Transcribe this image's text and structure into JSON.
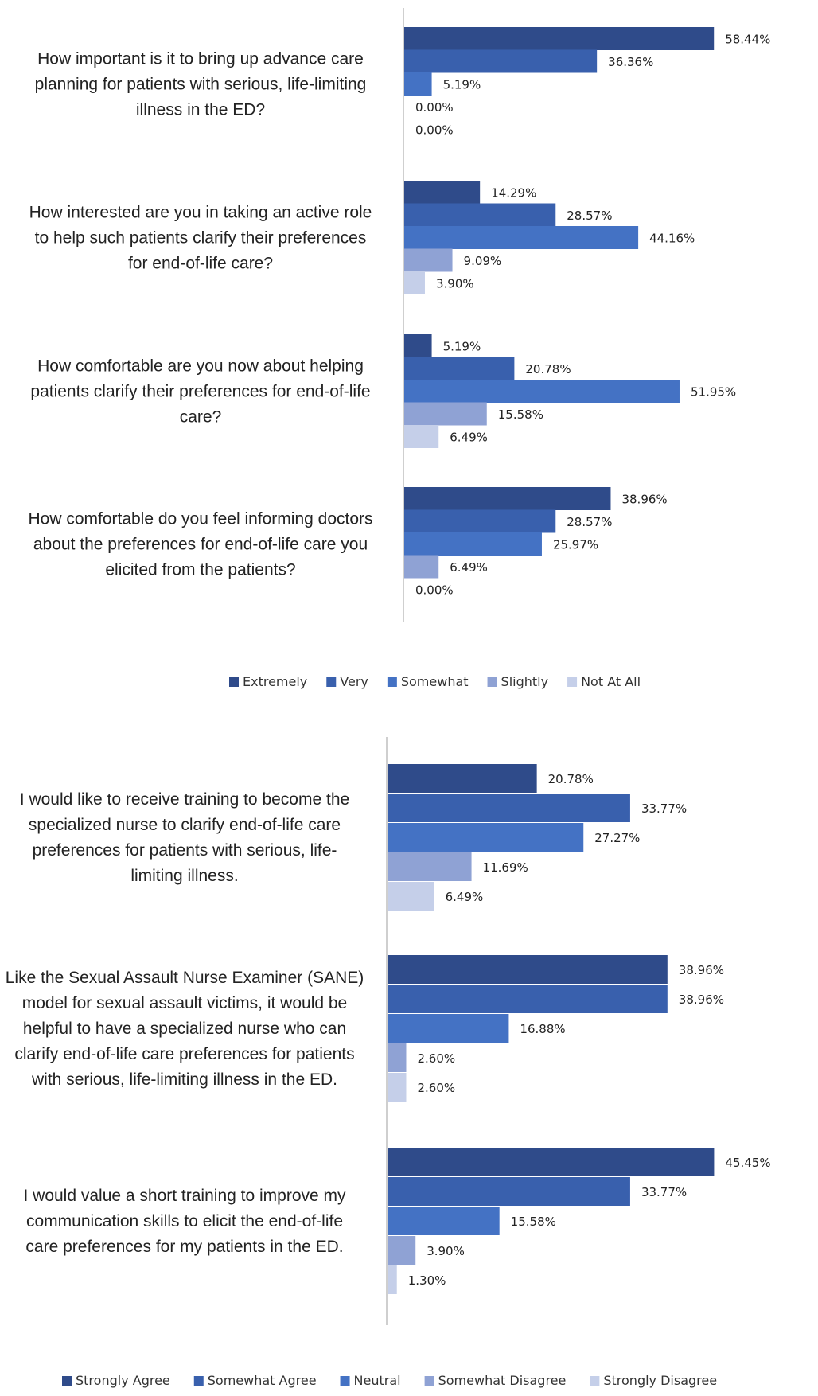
{
  "chart_data": [
    {
      "type": "bar",
      "orientation": "horizontal",
      "categories": [
        "How important is it to bring up advance care planning for patients with serious, life-limiting illness in the ED?",
        "How interested are you in taking an active role to help such patients clarify their preferences for end-of-life care?",
        "How comfortable are you now about helping patients clarify their preferences for end-of-life care?",
        "How comfortable do you feel informing doctors about the preferences for end-of-life care you elicited from the patients?"
      ],
      "category_lines": [
        [
          "How important is it to bring up advance care",
          "planning for patients with serious, life-limiting",
          "illness in the ED?"
        ],
        [
          "How interested are you in taking an active role",
          "to help such patients clarify their preferences",
          "for end-of-life care?"
        ],
        [
          "How comfortable are you now about helping",
          "patients clarify their preferences for end-of-life",
          "care?"
        ],
        [
          "How comfortable do you feel informing doctors",
          "about the preferences for end-of-life care you",
          "elicited from the patients?"
        ]
      ],
      "series": [
        {
          "name": "Extremely",
          "values": [
            58.44,
            14.29,
            5.19,
            38.96
          ],
          "labels": [
            "58.44%",
            "14.29%",
            "5.19%",
            "38.96%"
          ]
        },
        {
          "name": "Very",
          "values": [
            36.36,
            28.57,
            20.78,
            28.57
          ],
          "labels": [
            "36.36%",
            "28.57%",
            "20.78%",
            "28.57%"
          ]
        },
        {
          "name": "Somewhat",
          "values": [
            5.19,
            44.16,
            51.95,
            25.97
          ],
          "labels": [
            "5.19%",
            "44.16%",
            "51.95%",
            "25.97%"
          ]
        },
        {
          "name": "Slightly",
          "values": [
            0.0,
            9.09,
            15.58,
            6.49
          ],
          "labels": [
            "0.00%",
            "9.09%",
            "15.58%",
            "6.49%"
          ]
        },
        {
          "name": "Not At All",
          "values": [
            0.0,
            3.9,
            6.49,
            0.0
          ],
          "labels": [
            "0.00%",
            "3.90%",
            "6.49%",
            "0.00%"
          ]
        }
      ],
      "legend_position": "bottom",
      "grid": false
    },
    {
      "type": "bar",
      "orientation": "horizontal",
      "categories": [
        "I would like to receive training to become the specialized nurse to clarify end-of-life care preferences for patients with serious, life-limiting illness.",
        "Like the Sexual Assault Nurse Examiner (SANE) model for sexual assault victims, it would be helpful to have a specialized nurse who can clarify end-of-life care preferences for patients with serious, life-limiting illness in the ED.",
        "I would value a short training to improve my communication skills to elicit the end-of-life care preferences for my patients in the ED."
      ],
      "category_lines": [
        [
          "I would like to receive training to become the",
          "specialized nurse to clarify end-of-life care",
          "preferences for patients with serious, life-",
          "limiting illness."
        ],
        [
          "Like the Sexual Assault Nurse Examiner (SANE)",
          "model for sexual assault victims, it would be",
          "helpful to have a specialized nurse who can",
          "clarify end-of-life care preferences for patients",
          "with serious, life-limiting illness in the ED."
        ],
        [
          "I would value a short training to improve my",
          "communication skills to elicit the end-of-life",
          "care preferences for my patients in the ED."
        ]
      ],
      "series": [
        {
          "name": "Strongly Agree",
          "values": [
            20.78,
            38.96,
            45.45
          ],
          "labels": [
            "20.78%",
            "38.96%",
            "45.45%"
          ]
        },
        {
          "name": "Somewhat Agree",
          "values": [
            33.77,
            38.96,
            33.77
          ],
          "labels": [
            "33.77%",
            "38.96%",
            "33.77%"
          ]
        },
        {
          "name": "Neutral",
          "values": [
            27.27,
            16.88,
            15.58
          ],
          "labels": [
            "27.27%",
            "16.88%",
            "15.58%"
          ]
        },
        {
          "name": "Somewhat Disagree",
          "values": [
            11.69,
            2.6,
            3.9
          ],
          "labels": [
            "11.69%",
            "2.60%",
            "3.90%"
          ]
        },
        {
          "name": "Strongly Disagree",
          "values": [
            6.49,
            2.6,
            1.3
          ],
          "labels": [
            "6.49%",
            "2.60%",
            "1.30%"
          ]
        }
      ],
      "legend_position": "bottom",
      "grid": false
    }
  ],
  "colors": [
    "#2f4b8a",
    "#3960ad",
    "#4472c4",
    "#8fa2d4",
    "#c5cfe9"
  ]
}
